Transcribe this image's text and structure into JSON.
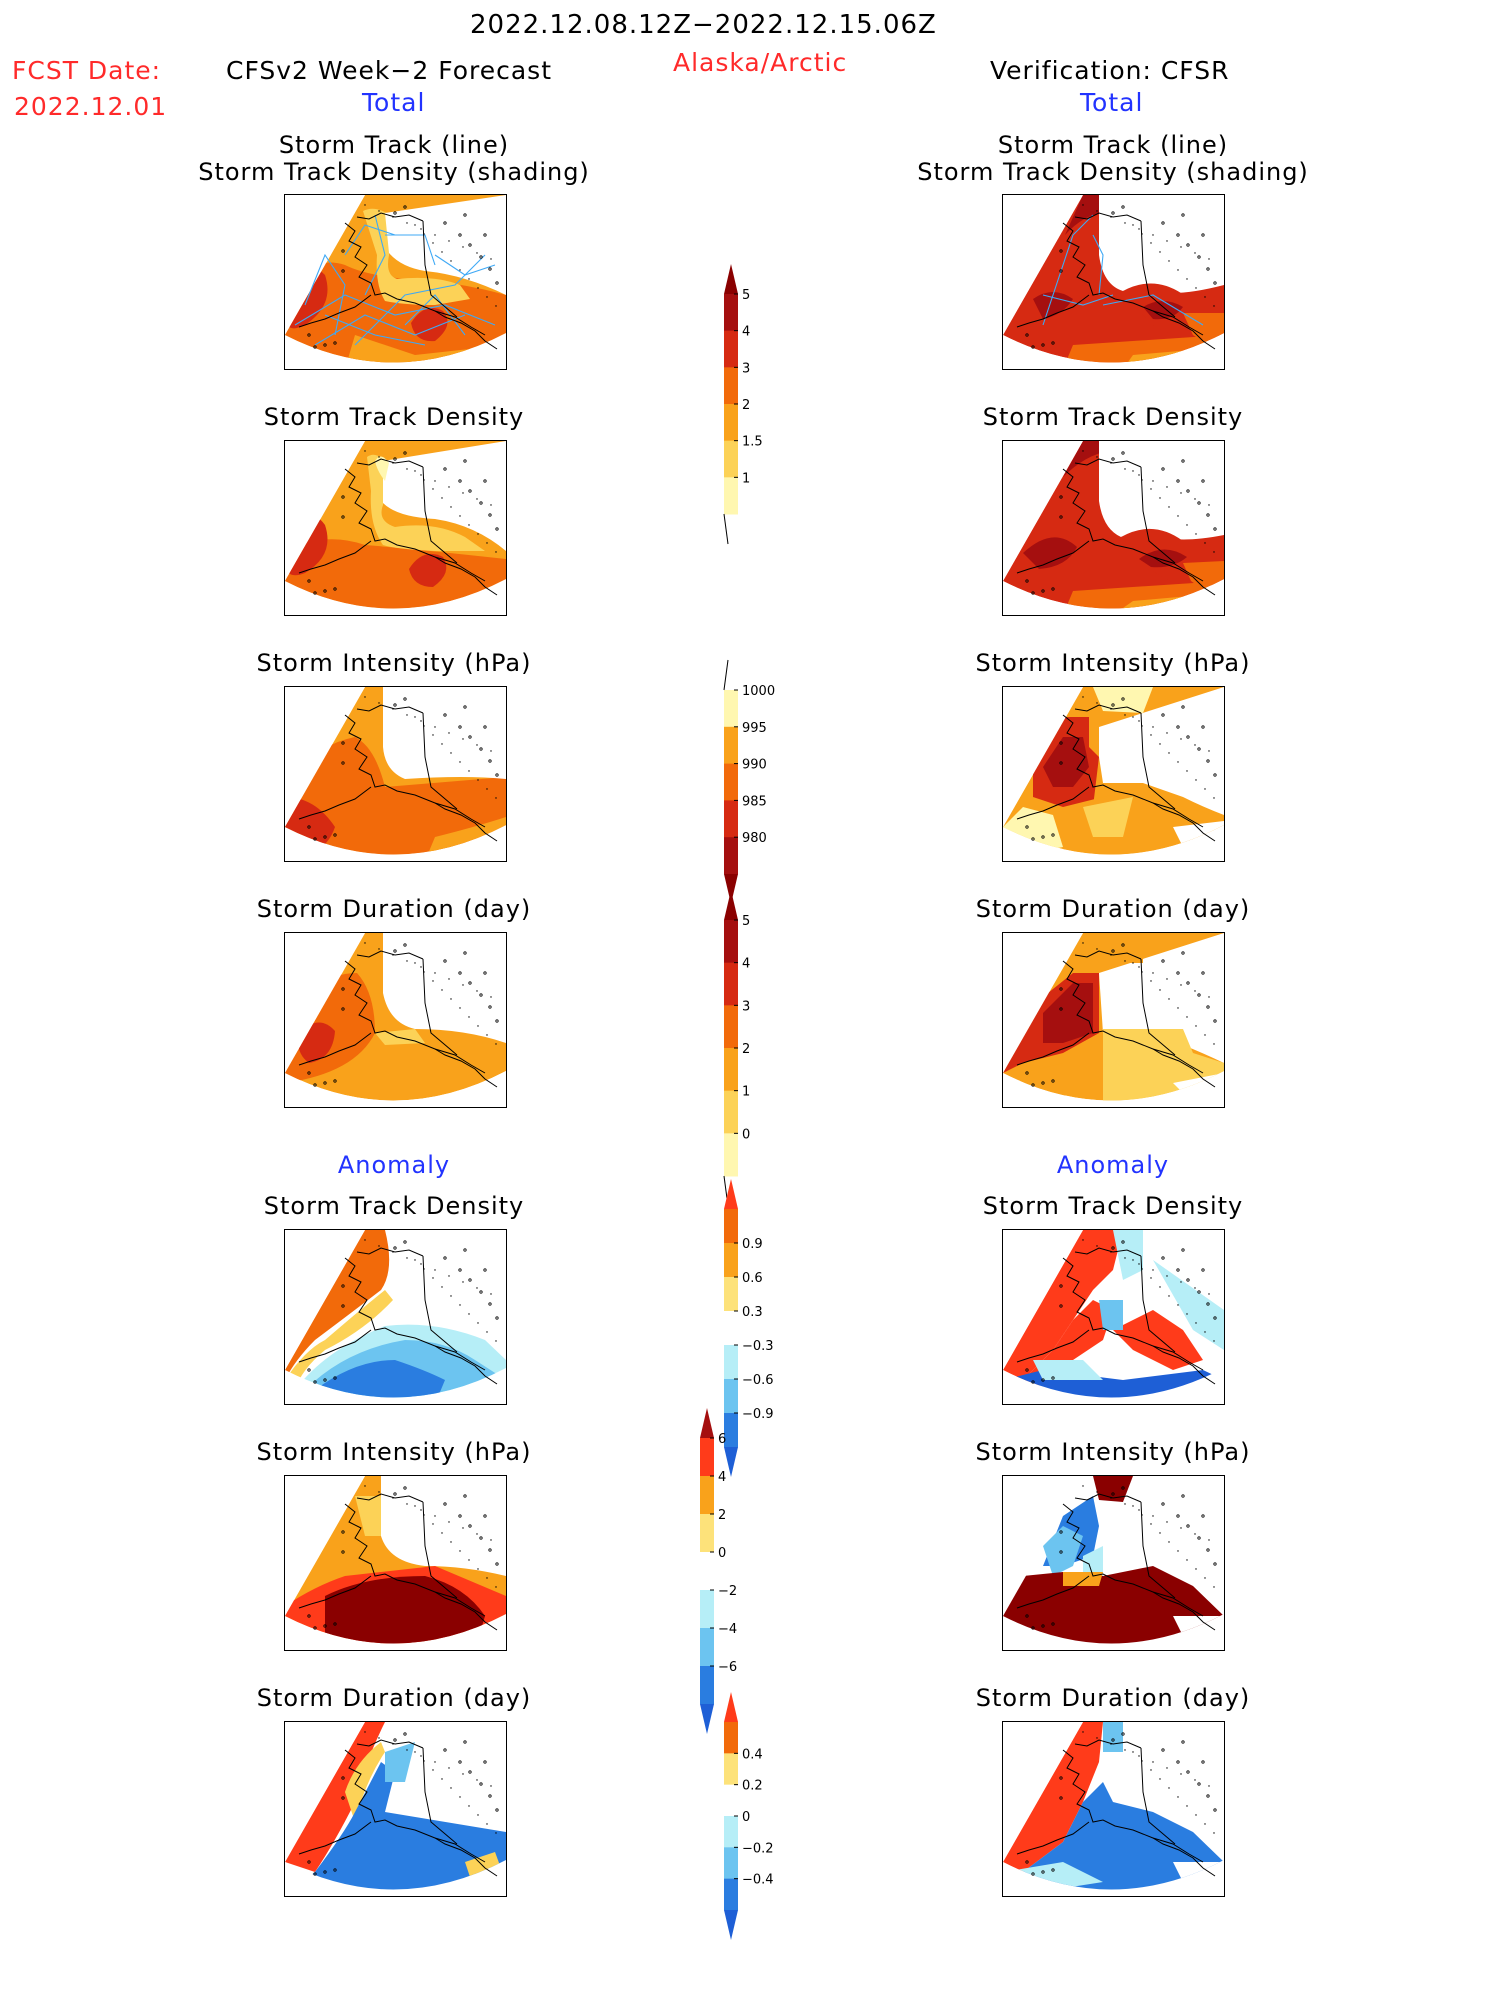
{
  "header": {
    "period": "2022.12.08.12Z−2022.12.15.06Z",
    "fcst_label": "FCST Date:",
    "fcst_date": "2022.12.01",
    "left_title": "CFSv2 Week−2 Forecast",
    "region": "Alaska/Arctic",
    "right_title": "Verification: CFSR",
    "total_label": "Total",
    "anomaly_label": "Anomaly"
  },
  "panel_titles": {
    "track_line": "Storm Track (line)",
    "track_shading": "Storm Track Density (shading)",
    "density": "Storm Track Density",
    "intensity": "Storm Intensity (hPa)",
    "duration": "Storm Duration (day)"
  },
  "colorbars": {
    "density": {
      "labels": [
        "5",
        "4",
        "3",
        "2",
        "1.5",
        "1"
      ],
      "colors": [
        "#a50f0f",
        "#d62a12",
        "#f26a0a",
        "#f9a21b",
        "#fcd257",
        "#fff7b0"
      ],
      "top_color": "#8a0000"
    },
    "intensity": {
      "labels": [
        "1000",
        "995",
        "990",
        "985",
        "980"
      ],
      "colors": [
        "#fff7b0",
        "#f9a21b",
        "#f26a0a",
        "#d62a12",
        "#a50f0f"
      ],
      "bottom_color": "#8a0000"
    },
    "duration": {
      "labels": [
        "5",
        "4",
        "3",
        "2",
        "1",
        "0"
      ],
      "colors": [
        "#a50f0f",
        "#d62a12",
        "#f26a0a",
        "#f9a21b",
        "#fcd257",
        "#fff7b0"
      ],
      "top_color": "#8a0000"
    },
    "anom_density": {
      "labels": [
        "0.9",
        "0.6",
        "0.3",
        "−0.3",
        "−0.6",
        "−0.9"
      ],
      "colors": [
        "#f26a0a",
        "#f9a21b",
        "#fde27a",
        "#ffffff",
        "#b6eef7",
        "#6cc4f0",
        "#2a7de0"
      ],
      "top_color": "#ff3b1a",
      "bottom_color": "#1e5fd6"
    },
    "anom_intensity": {
      "labels": [
        "6",
        "4",
        "2",
        "0",
        "−2",
        "−4",
        "−6"
      ],
      "colors": [
        "#ff3b1a",
        "#f9a21b",
        "#fde27a",
        "#ffffff",
        "#b6eef7",
        "#6cc4f0",
        "#2a7de0"
      ],
      "top_color": "#a50f0f",
      "bottom_color": "#1e5fd6"
    },
    "anom_duration": {
      "labels": [
        "0.4",
        "0.2",
        "0",
        "−0.2",
        "−0.4"
      ],
      "colors": [
        "#f26a0a",
        "#fde27a",
        "#ffffff",
        "#b6eef7",
        "#6cc4f0",
        "#2a7de0"
      ],
      "top_color": "#ff3b1a",
      "bottom_color": "#1e5fd6"
    }
  }
}
